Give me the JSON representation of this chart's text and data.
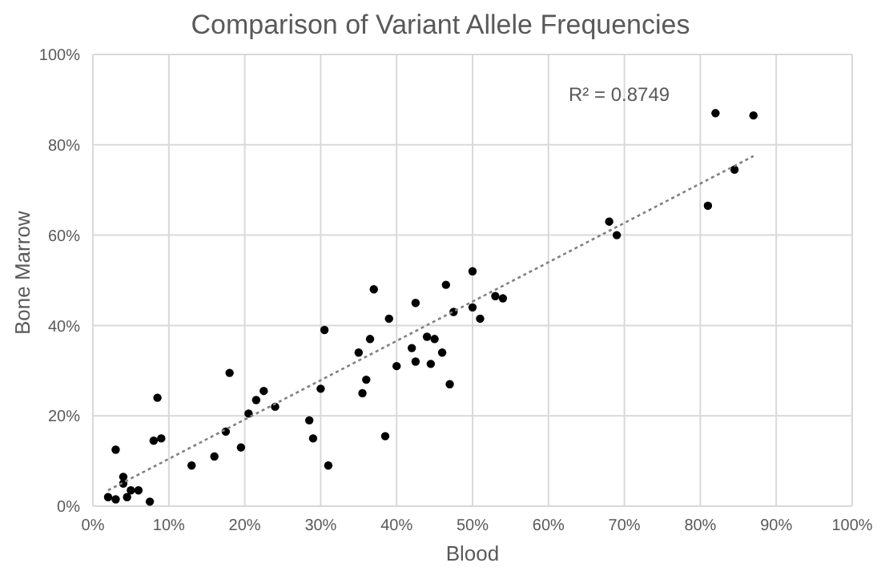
{
  "chart_data": {
    "type": "scatter",
    "title": "Comparison of Variant Allele Frequencies",
    "xlabel": "Blood",
    "ylabel": "Bone Marrow",
    "xlim": [
      0,
      100
    ],
    "ylim": [
      0,
      100
    ],
    "xticks": [
      {
        "value": 0,
        "label": "0%"
      },
      {
        "value": 10,
        "label": "10%"
      },
      {
        "value": 20,
        "label": "20%"
      },
      {
        "value": 30,
        "label": "30%"
      },
      {
        "value": 40,
        "label": "40%"
      },
      {
        "value": 50,
        "label": "50%"
      },
      {
        "value": 60,
        "label": "60%"
      },
      {
        "value": 70,
        "label": "70%"
      },
      {
        "value": 80,
        "label": "80%"
      },
      {
        "value": 90,
        "label": "90%"
      },
      {
        "value": 100,
        "label": "100%"
      }
    ],
    "yticks": [
      {
        "value": 0,
        "label": "0%"
      },
      {
        "value": 20,
        "label": "20%"
      },
      {
        "value": 40,
        "label": "40%"
      },
      {
        "value": 60,
        "label": "60%"
      },
      {
        "value": 80,
        "label": "80%"
      },
      {
        "value": 100,
        "label": "100%"
      }
    ],
    "grid": true,
    "annotations": [
      "R² = 0.8749"
    ],
    "series": [
      {
        "marker": "circle",
        "color": "#000000",
        "x": [
          2,
          3,
          3,
          4,
          4,
          4.5,
          5,
          6,
          7.5,
          8,
          8.5,
          9,
          13,
          16,
          17.5,
          18,
          19.5,
          20.5,
          21.5,
          22.5,
          24,
          28.5,
          29,
          30,
          30.5,
          31,
          35,
          35.5,
          36,
          36.5,
          37,
          38.5,
          39,
          40,
          42,
          42.5,
          42.5,
          44,
          44.5,
          45,
          46,
          46.5,
          47,
          47.5,
          50,
          50,
          51,
          53,
          54,
          68,
          69,
          81,
          82,
          84.5,
          87
        ],
        "values": [
          2,
          12.5,
          1.5,
          5,
          6.5,
          2,
          3.5,
          3.5,
          1,
          14.5,
          24,
          15,
          9,
          11,
          16.5,
          29.5,
          13,
          20.5,
          23.5,
          25.5,
          22,
          19,
          15,
          26,
          39,
          9,
          34,
          25,
          28,
          37,
          48,
          15.5,
          41.5,
          31,
          35,
          45,
          32,
          37.5,
          31.5,
          37,
          34,
          49,
          27,
          43,
          52,
          44,
          41.5,
          46.5,
          46,
          63,
          60,
          66.5,
          87,
          74.5,
          86.5
        ]
      },
      {
        "type": "line",
        "marker": "none",
        "color": "#808080",
        "line_style": "dotted",
        "x": [
          2,
          87
        ],
        "values": [
          3.5,
          77.5
        ]
      }
    ]
  }
}
